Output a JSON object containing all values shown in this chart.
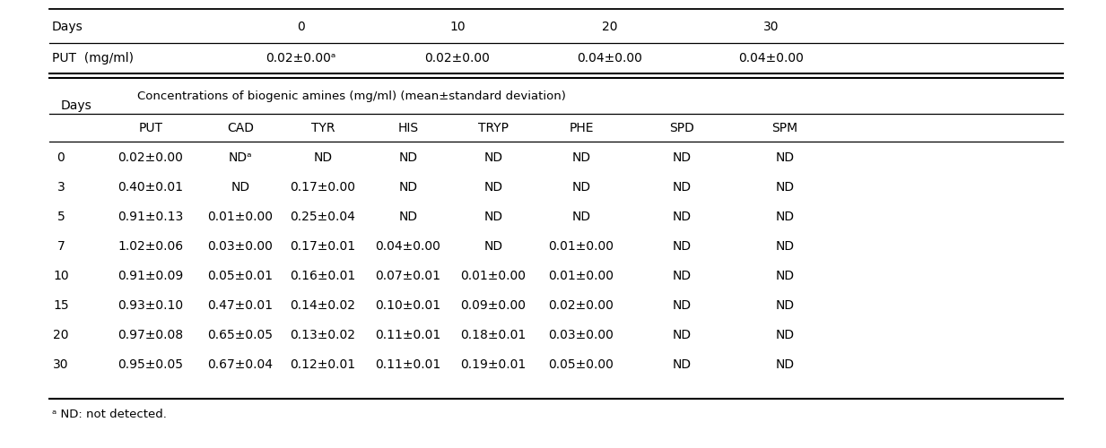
{
  "top_days": [
    "0",
    "10",
    "20",
    "30"
  ],
  "top_put_label": "PUT  (mg/ml)",
  "top_put_values": [
    "0.02±0.00ᵃ",
    "0.02±0.00",
    "0.04±0.00",
    "0.04±0.00"
  ],
  "subtitle": "Concentrations of biogenic amines (mg/ml) (mean±standard deviation)",
  "col_headers": [
    "PUT",
    "CAD",
    "TYR",
    "HIS",
    "TRYP",
    "PHE",
    "SPD",
    "SPM"
  ],
  "rows": [
    [
      "0",
      "0.02±0.00",
      "NDᵃ",
      "ND",
      "ND",
      "ND",
      "ND",
      "ND",
      "ND"
    ],
    [
      "3",
      "0.40±0.01",
      "ND",
      "0.17±0.00",
      "ND",
      "ND",
      "ND",
      "ND",
      "ND"
    ],
    [
      "5",
      "0.91±0.13",
      "0.01±0.00",
      "0.25±0.04",
      "ND",
      "ND",
      "ND",
      "ND",
      "ND"
    ],
    [
      "7",
      "1.02±0.06",
      "0.03±0.00",
      "0.17±0.01",
      "0.04±0.00",
      "ND",
      "0.01±0.00",
      "ND",
      "ND"
    ],
    [
      "10",
      "0.91±0.09",
      "0.05±0.01",
      "0.16±0.01",
      "0.07±0.01",
      "0.01±0.00",
      "0.01±0.00",
      "ND",
      "ND"
    ],
    [
      "15",
      "0.93±0.10",
      "0.47±0.01",
      "0.14±0.02",
      "0.10±0.01",
      "0.09±0.00",
      "0.02±0.00",
      "ND",
      "ND"
    ],
    [
      "20",
      "0.97±0.08",
      "0.65±0.05",
      "0.13±0.02",
      "0.11±0.01",
      "0.18±0.01",
      "0.03±0.00",
      "ND",
      "ND"
    ],
    [
      "30",
      "0.95±0.05",
      "0.67±0.04",
      "0.12±0.01",
      "0.11±0.01",
      "0.19±0.01",
      "0.05±0.00",
      "ND",
      "ND"
    ]
  ],
  "footnote": "ᵃ ND: not detected.",
  "bg_color": "#ffffff",
  "text_color": "#000000",
  "font_size": 10.0
}
